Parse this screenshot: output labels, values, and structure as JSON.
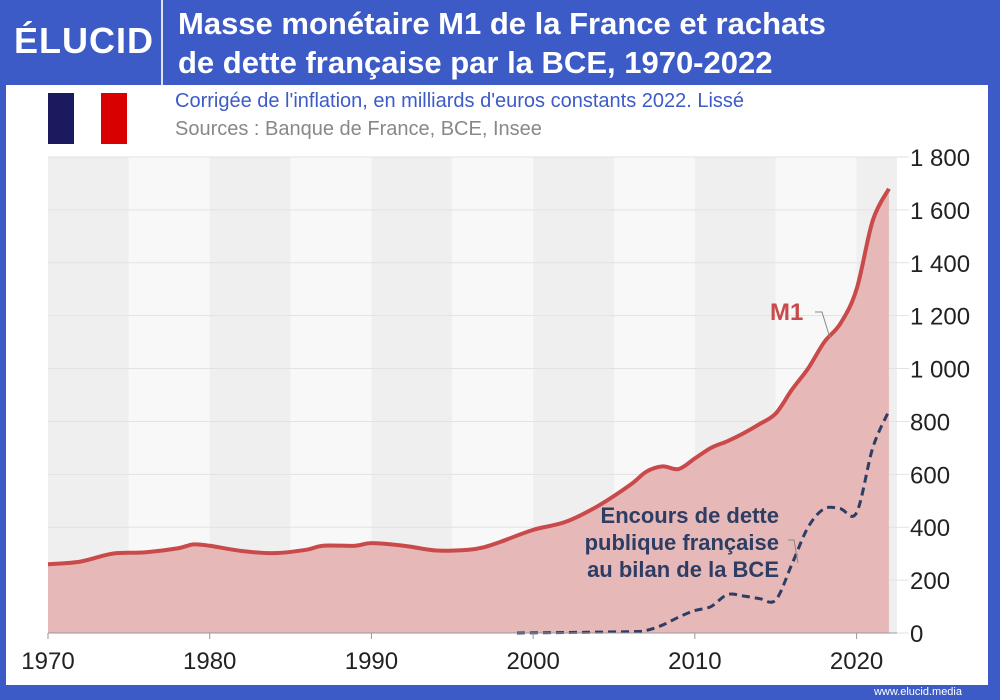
{
  "header": {
    "logo": "ÉLUCID",
    "title_line1": "Masse monétaire M1 de la France et rachats",
    "title_line2": "de dette française par la BCE, 1970-2022"
  },
  "flag": {
    "colors": [
      "#1b1a5e",
      "#ffffff",
      "#d80000"
    ]
  },
  "footer": {
    "url": "www.elucid.media"
  },
  "colors": {
    "m1_line": "#c94a4a",
    "m1_fill": "#e6b8b8",
    "debt_line": "#2d3d63",
    "frame": "#3d5bc6"
  },
  "chart_data": {
    "type": "area",
    "title": "Masse monétaire M1 de la France et rachats de dette française par la BCE, 1970-2022",
    "subtitle": "Corrigée de l'inflation, en milliards d'euros constants 2022. Lissé",
    "source": "Sources : Banque de France, BCE, Insee",
    "xlim": [
      1970,
      2022.5
    ],
    "ylim": [
      0,
      1800
    ],
    "x_ticks": [
      "1970",
      "1980",
      "1990",
      "2000",
      "2010",
      "2020"
    ],
    "y_ticks": [
      "0",
      "200",
      "400",
      "600",
      "800",
      "1 000",
      "1 200",
      "1 400",
      "1 600",
      "1 800"
    ],
    "y_axis_side": "right",
    "grid": true,
    "series": [
      {
        "name": "M1",
        "style": "solid area",
        "x": [
          1970,
          1972,
          1974,
          1976,
          1978,
          1979,
          1980,
          1982,
          1984,
          1986,
          1987,
          1989,
          1990,
          1992,
          1994,
          1996,
          1997,
          1998,
          2000,
          2002,
          2004,
          2006,
          2007,
          2008,
          2009,
          2010,
          2011,
          2012,
          2013,
          2014,
          2015,
          2016,
          2017,
          2018,
          2019,
          2020,
          2021,
          2022
        ],
        "values": [
          260,
          270,
          300,
          305,
          320,
          335,
          330,
          310,
          302,
          315,
          330,
          330,
          340,
          330,
          312,
          315,
          325,
          345,
          390,
          420,
          480,
          560,
          610,
          630,
          620,
          660,
          700,
          725,
          755,
          790,
          830,
          920,
          1000,
          1100,
          1170,
          1300,
          1560,
          1680
        ]
      },
      {
        "name": "Encours de dette publique française au bilan de la BCE",
        "style": "dashed",
        "x": [
          1999,
          2006,
          2007,
          2008,
          2009,
          2010,
          2011,
          2012,
          2013,
          2014,
          2015,
          2016,
          2017,
          2018,
          2019,
          2020,
          2021,
          2022
        ],
        "values": [
          0,
          5,
          10,
          30,
          60,
          85,
          100,
          145,
          140,
          130,
          125,
          260,
          400,
          470,
          470,
          455,
          700,
          840
        ]
      }
    ],
    "labels": {
      "m1": "M1",
      "debt_line1": "Encours de dette",
      "debt_line2": "publique française",
      "debt_line3": "au bilan de la BCE"
    }
  }
}
